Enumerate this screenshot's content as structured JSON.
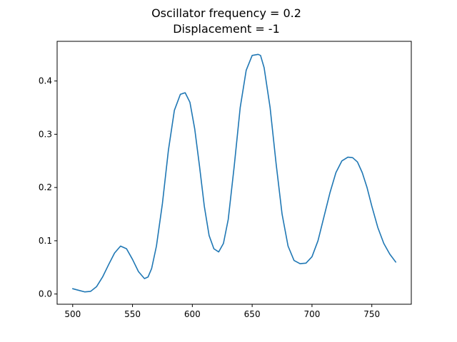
{
  "chart_data": {
    "type": "line",
    "title_line1": "Oscillator frequency = 0.2",
    "title_line2": "Displacement = -1",
    "xlabel": "",
    "ylabel": "",
    "xlim": [
      487,
      783
    ],
    "ylim": [
      -0.0192,
      0.4745
    ],
    "x_ticks": [
      500,
      550,
      600,
      650,
      700,
      750
    ],
    "y_ticks": [
      0.0,
      0.1,
      0.2,
      0.3,
      0.4
    ],
    "y_tick_labels": [
      "0.0",
      "0.1",
      "0.2",
      "0.3",
      "0.4"
    ],
    "grid": false,
    "line_color": "#1f77b4",
    "series": [
      {
        "x": [
          500,
          505,
          510,
          515,
          520,
          525,
          530,
          535,
          540,
          545,
          550,
          555,
          560,
          563,
          566,
          570,
          575,
          580,
          585,
          590,
          594,
          598,
          602,
          606,
          610,
          614,
          618,
          622,
          626,
          630,
          635,
          640,
          645,
          650,
          655,
          657,
          660,
          665,
          670,
          675,
          680,
          685,
          690,
          695,
          700,
          705,
          710,
          715,
          720,
          725,
          730,
          734,
          738,
          742,
          746,
          750,
          755,
          760,
          765,
          770
        ],
        "y": [
          0.01,
          0.007,
          0.004,
          0.005,
          0.014,
          0.032,
          0.055,
          0.077,
          0.09,
          0.085,
          0.065,
          0.042,
          0.029,
          0.032,
          0.048,
          0.09,
          0.17,
          0.27,
          0.345,
          0.375,
          0.378,
          0.36,
          0.31,
          0.24,
          0.165,
          0.11,
          0.085,
          0.079,
          0.095,
          0.14,
          0.24,
          0.35,
          0.42,
          0.448,
          0.45,
          0.448,
          0.425,
          0.35,
          0.245,
          0.15,
          0.09,
          0.063,
          0.057,
          0.058,
          0.07,
          0.1,
          0.145,
          0.19,
          0.228,
          0.25,
          0.257,
          0.256,
          0.248,
          0.228,
          0.2,
          0.165,
          0.125,
          0.095,
          0.075,
          0.06
        ]
      }
    ]
  }
}
